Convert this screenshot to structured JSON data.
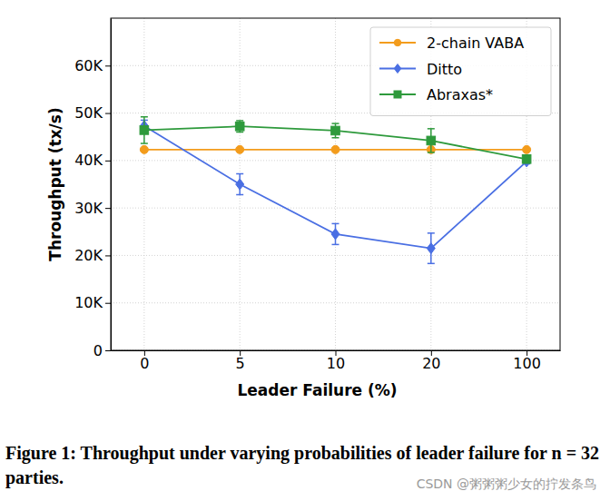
{
  "chart_data": {
    "type": "line",
    "title": "Figure 1: Throughput under varying probabilities of leader failure for n = 32 parties.",
    "x_label": "Leader Failure (%)",
    "y_label": "Throughput (tx/s)",
    "annotations": [
      "CSDN @粥粥粥少女的拧发条鸟"
    ],
    "categories": [
      "0",
      "5",
      "10",
      "20",
      "100"
    ],
    "ylim": [
      0,
      70000
    ],
    "yticks": [
      0,
      {
        "value": 10000,
        "label": "10K"
      },
      {
        "value": 20000,
        "label": "20K"
      },
      {
        "value": 30000,
        "label": "30K"
      },
      {
        "value": 40000,
        "label": "40K"
      },
      {
        "value": 50000,
        "label": "50K"
      },
      {
        "value": 60000,
        "label": "60K"
      }
    ],
    "grid": true,
    "legend": "upper right",
    "series": [
      {
        "name": "2-chain VABA",
        "color": "#f39c1c",
        "marker": "circle",
        "values": [
          42300,
          42300,
          42300,
          42300,
          42300
        ]
      },
      {
        "name": "Ditto",
        "color": "#4a6fe3",
        "marker": "diamond",
        "values": [
          47300,
          35000,
          24500,
          21500,
          39800
        ],
        "errors": [
          1200,
          2200,
          2200,
          3200,
          500
        ]
      },
      {
        "name": "Abraxas*",
        "color": "#2e9a3c",
        "marker": "square",
        "values": [
          46400,
          47200,
          46300,
          44200,
          40300
        ],
        "errors": [
          2800,
          1200,
          1500,
          2500,
          600
        ]
      }
    ]
  }
}
